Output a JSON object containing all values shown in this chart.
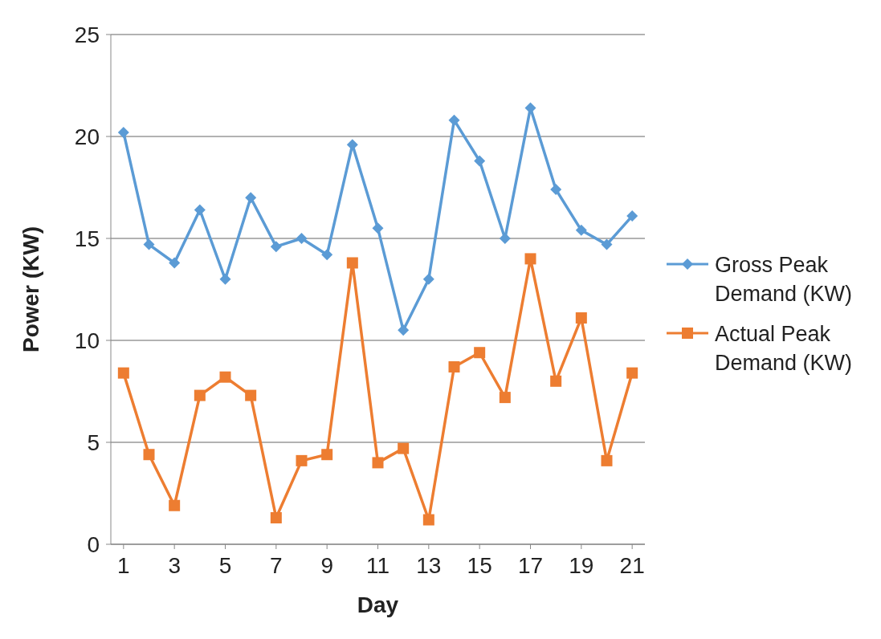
{
  "chart_data": {
    "type": "line",
    "xlabel": "Day",
    "ylabel": "Power (KW)",
    "x": [
      1,
      2,
      3,
      4,
      5,
      6,
      7,
      8,
      9,
      10,
      11,
      12,
      13,
      14,
      15,
      16,
      17,
      18,
      19,
      20,
      21
    ],
    "xlim": [
      0.5,
      21.5
    ],
    "xticks": [
      1,
      3,
      5,
      7,
      9,
      11,
      13,
      15,
      17,
      19,
      21
    ],
    "series": [
      {
        "name": "Gross Peak Demand (KW)",
        "color": "#5b9bd5",
        "marker": "diamond",
        "values": [
          20.2,
          14.7,
          13.8,
          16.4,
          13.0,
          17.0,
          14.6,
          15.0,
          14.2,
          19.6,
          15.5,
          10.5,
          13.0,
          20.8,
          18.8,
          15.0,
          21.4,
          17.4,
          15.4,
          14.7,
          16.1
        ]
      },
      {
        "name": "Actual Peak Demand (KW)",
        "color": "#ed7d31",
        "marker": "square",
        "values": [
          8.4,
          4.4,
          1.9,
          7.3,
          8.2,
          7.3,
          1.3,
          4.1,
          4.4,
          13.8,
          4.0,
          4.7,
          1.2,
          8.7,
          9.4,
          7.2,
          14.0,
          8.0,
          11.1,
          4.1,
          8.4
        ]
      }
    ],
    "ylim": [
      0,
      25
    ],
    "yticks": [
      0,
      5,
      10,
      15,
      20,
      25
    ],
    "grid": "y",
    "legend": "right"
  }
}
